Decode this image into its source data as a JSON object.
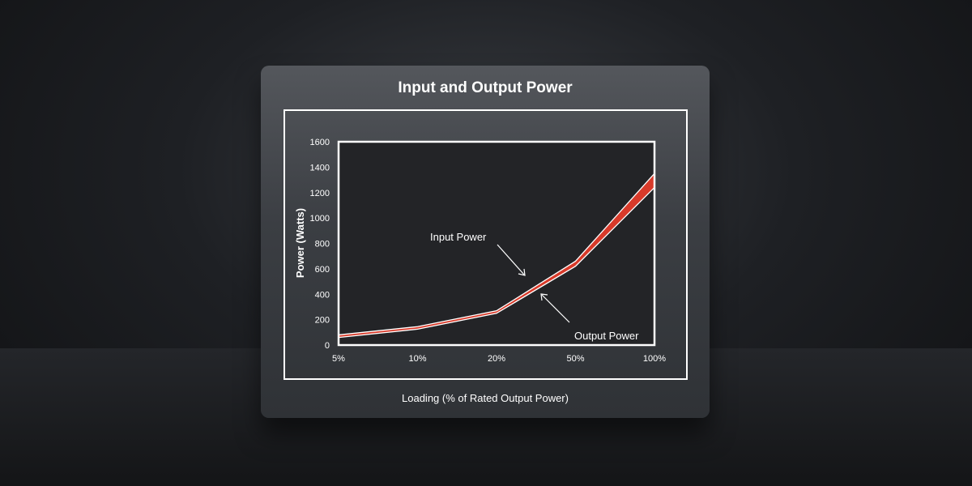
{
  "chart_data": {
    "type": "line",
    "title": "Input and Output Power",
    "xlabel": "Loading (% of Rated Output Power)",
    "ylabel": "Power (Watts)",
    "categories": [
      "5%",
      "10%",
      "20%",
      "50%",
      "100%"
    ],
    "ylim": [
      0,
      1600
    ],
    "yticks": [
      0,
      200,
      400,
      600,
      800,
      1000,
      1200,
      1400,
      1600
    ],
    "grid": false,
    "series": [
      {
        "name": "Input Power",
        "values": [
          80,
          145,
          270,
          660,
          1350
        ]
      },
      {
        "name": "Output Power",
        "values": [
          60,
          125,
          250,
          620,
          1240
        ]
      }
    ],
    "annotations": [
      "Input Power",
      "Output Power"
    ],
    "fill_color": "#d83a2a",
    "line_color": "#ffffff"
  }
}
